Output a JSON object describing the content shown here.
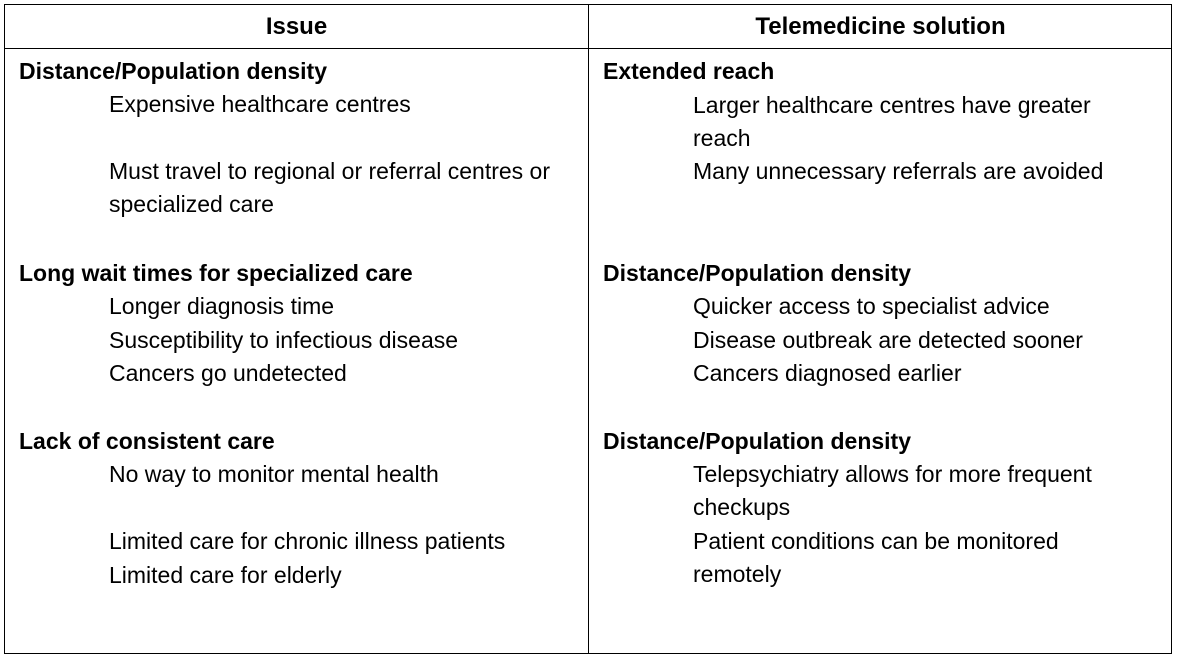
{
  "headers": {
    "issue": "Issue",
    "solution": "Telemedicine solution"
  },
  "issues": [
    {
      "title": "Distance/Population density",
      "items": [
        "Expensive healthcare centres",
        "Must travel to regional or referral centres or specialized care"
      ]
    },
    {
      "title": "Long wait times for specialized care",
      "items": [
        "Longer diagnosis time",
        "Susceptibility to infectious disease",
        "Cancers go undetected"
      ]
    },
    {
      "title": "Lack of consistent care",
      "items": [
        "No way to monitor mental health",
        "Limited care for chronic illness patients",
        "Limited care for elderly"
      ]
    }
  ],
  "solutions": [
    {
      "title": "Extended reach",
      "items": [
        "Larger healthcare centres have greater reach",
        "Many unnecessary referrals are avoided"
      ]
    },
    {
      "title": "Distance/Population density",
      "items": [
        "Quicker access to specialist advice",
        "Disease outbreak are detected sooner",
        "Cancers diagnosed earlier"
      ]
    },
    {
      "title": "Distance/Population density",
      "items": [
        "Telepsychiatry allows for more frequent checkups",
        "Patient conditions can be monitored remotely"
      ]
    }
  ]
}
